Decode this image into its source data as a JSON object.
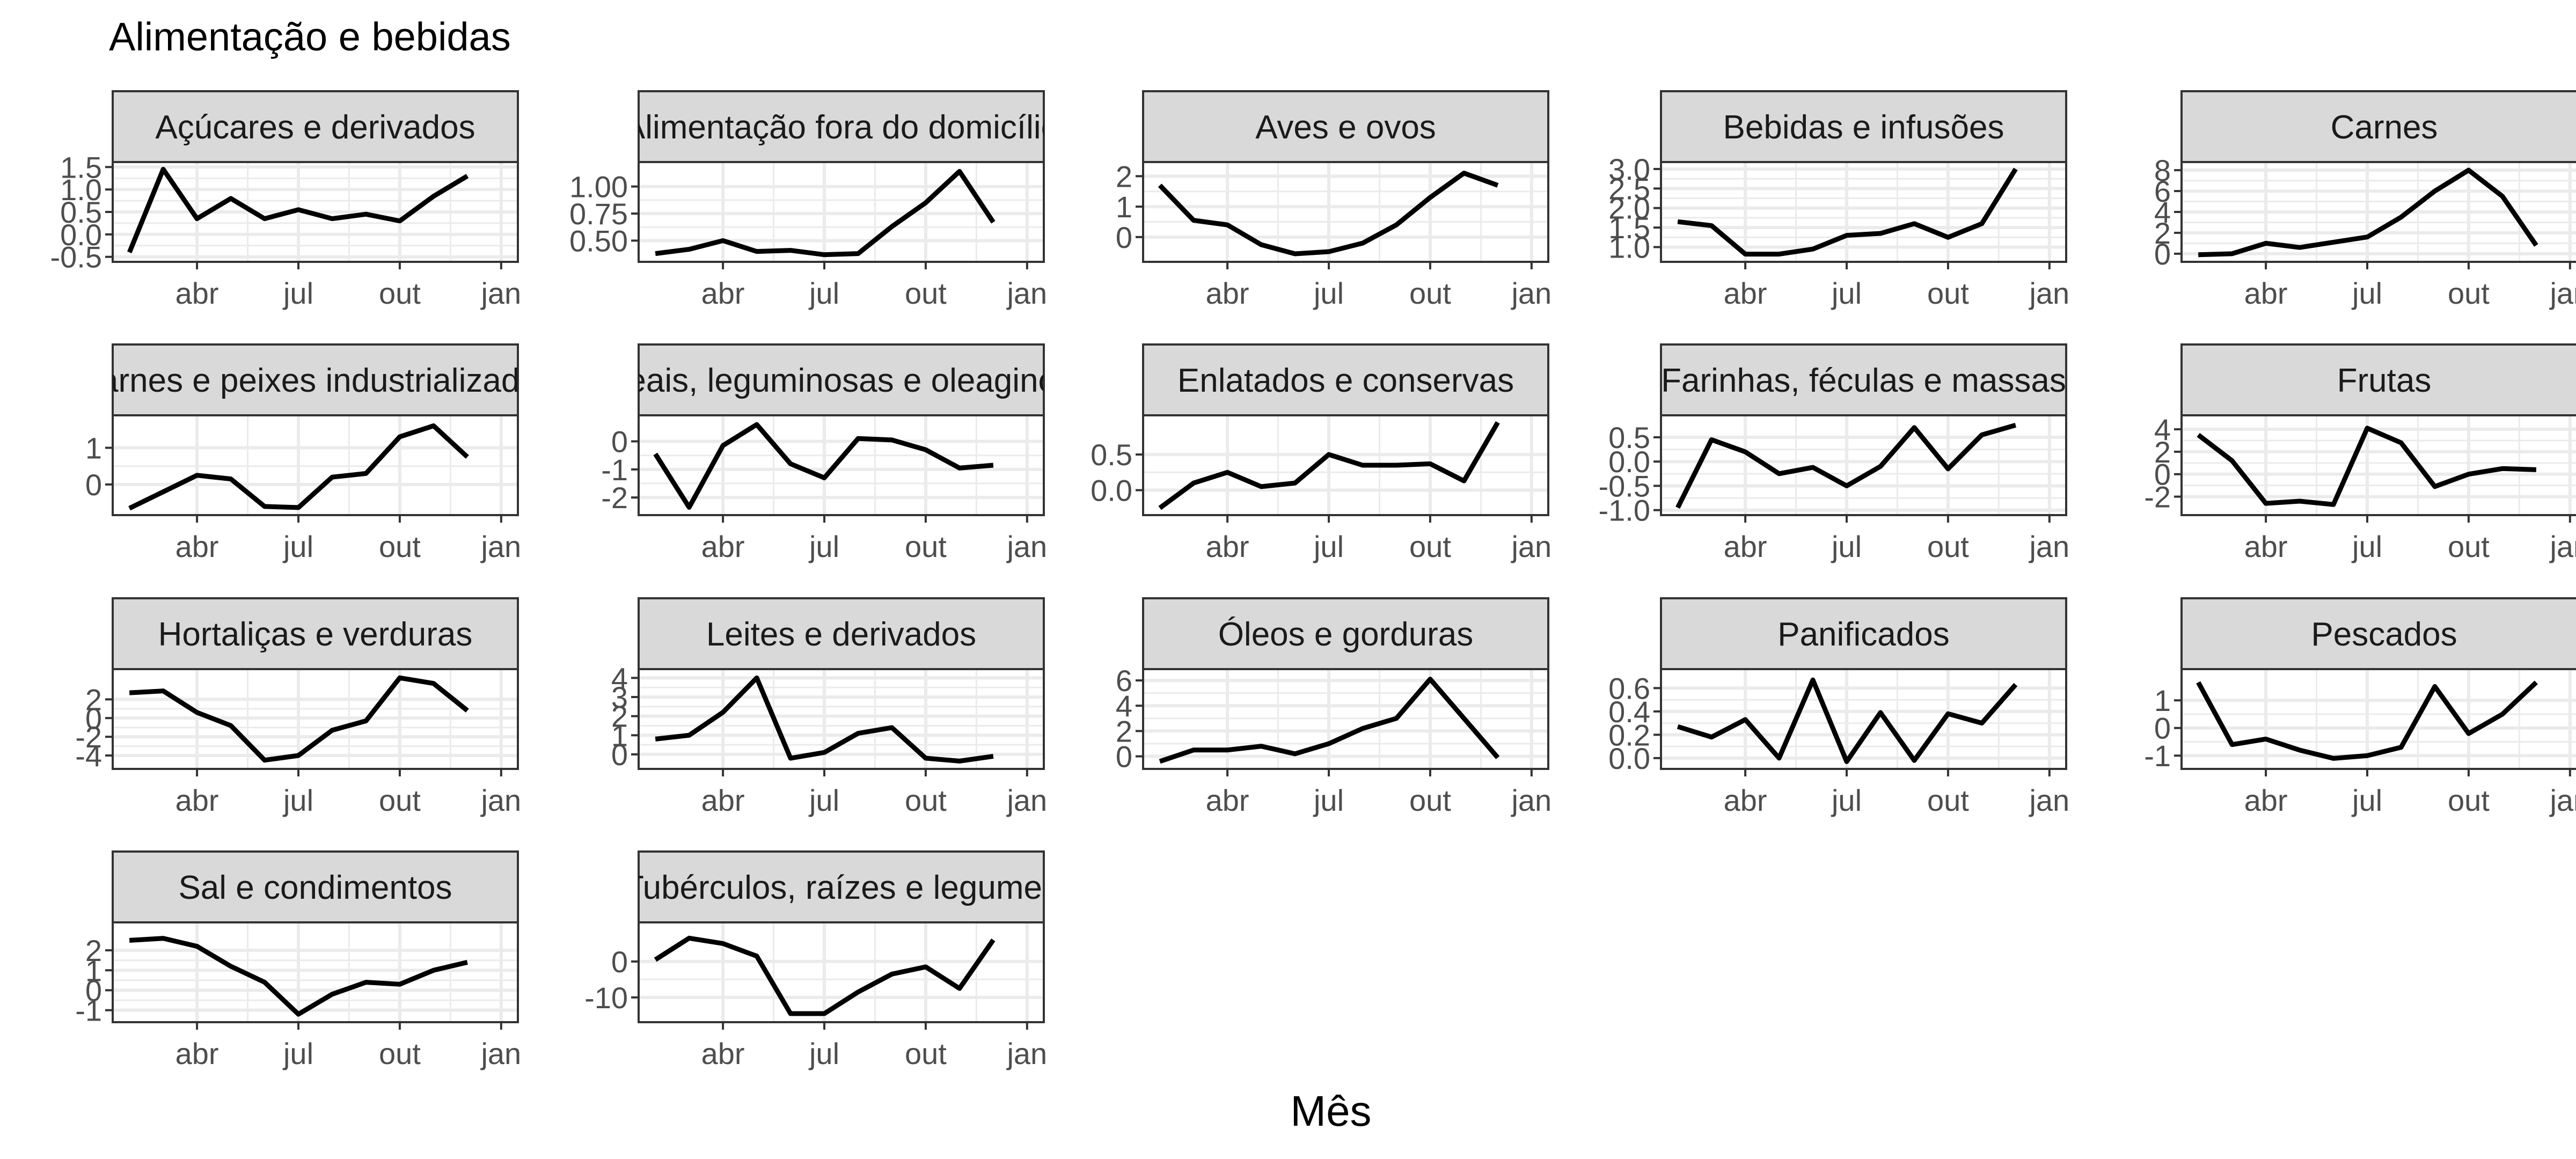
{
  "title": "Alimentação e bebidas",
  "xlabel": "Mês",
  "colors": {
    "line": "#000000",
    "strip_fill": "#d9d9d9",
    "strip_border": "#333333",
    "grid": "#ebebeb",
    "panel_border": "#333333",
    "tick_label": "#4d4d4d"
  },
  "chart_data": {
    "type": "line",
    "layout": "facet-wrap 5 columns, free y scales",
    "grid": true,
    "x_tick_labels": [
      "abr",
      "jul",
      "out",
      "jan"
    ],
    "x_tick_positions": [
      2,
      5,
      8,
      11
    ],
    "x_range": [
      0,
      11
    ],
    "panels": [
      {
        "name": "Açúcares e derivados",
        "ylim": [
          -0.5,
          1.5
        ],
        "yticks": [
          -0.5,
          0.0,
          0.5,
          1.0,
          1.5
        ],
        "ytick_labels": [
          "-0.5",
          "0.0",
          "0.5",
          "1.0",
          "1.5"
        ],
        "values": [
          -0.4,
          1.45,
          0.35,
          0.8,
          0.35,
          0.55,
          0.35,
          0.45,
          0.3,
          0.85,
          1.3
        ]
      },
      {
        "name": "Alimentação fora do domicílio",
        "ylim": [
          0.35,
          1.18
        ],
        "yticks": [
          0.5,
          0.75,
          1.0
        ],
        "ytick_labels": [
          "0.50",
          "0.75",
          "1.00"
        ],
        "values": [
          0.38,
          0.42,
          0.5,
          0.4,
          0.41,
          0.37,
          0.38,
          0.63,
          0.85,
          1.14,
          0.67
        ]
      },
      {
        "name": "Aves e ovos",
        "ylim": [
          -0.65,
          2.3
        ],
        "yticks": [
          0,
          1,
          2
        ],
        "ytick_labels": [
          "0",
          "1",
          "2"
        ],
        "values": [
          1.7,
          0.55,
          0.4,
          -0.25,
          -0.55,
          -0.48,
          -0.2,
          0.4,
          1.3,
          2.1,
          1.7
        ]
      },
      {
        "name": "Bebidas e infusões",
        "ylim": [
          0.75,
          3.05
        ],
        "yticks": [
          1.0,
          1.5,
          2.0,
          2.5,
          3.0
        ],
        "ytick_labels": [
          "1.0",
          "1.5",
          "2.0",
          "2.5",
          "3.0"
        ],
        "values": [
          1.65,
          1.55,
          0.82,
          0.82,
          0.95,
          1.3,
          1.35,
          1.6,
          1.25,
          1.6,
          3.0
        ]
      },
      {
        "name": "Carnes",
        "ylim": [
          -0.3,
          8.3
        ],
        "yticks": [
          0,
          2,
          4,
          6,
          8
        ],
        "ytick_labels": [
          "0",
          "2",
          "4",
          "6",
          "8"
        ],
        "values": [
          -0.1,
          0.0,
          1.0,
          0.6,
          1.1,
          1.6,
          3.5,
          6.0,
          8.0,
          5.5,
          0.8
        ]
      },
      {
        "name": "Carnes e peixes industrializados",
        "ylim": [
          -0.7,
          1.75
        ],
        "yticks": [
          0,
          1
        ],
        "ytick_labels": [
          "0",
          "1"
        ],
        "values": [
          -0.65,
          -0.2,
          0.25,
          0.15,
          -0.6,
          -0.63,
          0.2,
          0.3,
          1.3,
          1.6,
          0.75
        ]
      },
      {
        "name": "Cereais, leguminosas e oleaginosas",
        "ylim": [
          -2.45,
          0.75
        ],
        "yticks": [
          -2,
          -1,
          0
        ],
        "ytick_labels": [
          "-2",
          "-1",
          "0"
        ],
        "values": [
          -0.45,
          -2.35,
          -0.15,
          0.6,
          -0.8,
          -1.3,
          0.1,
          0.05,
          -0.3,
          -0.95,
          -0.85
        ]
      },
      {
        "name": "Enlatados e conservas",
        "ylim": [
          -0.28,
          0.98
        ],
        "yticks": [
          0.0,
          0.5
        ],
        "ytick_labels": [
          "0.0",
          "0.5"
        ],
        "values": [
          -0.25,
          0.1,
          0.25,
          0.05,
          0.1,
          0.5,
          0.35,
          0.35,
          0.37,
          0.13,
          0.95
        ]
      },
      {
        "name": "Farinhas, féculas e massas",
        "ylim": [
          -1.0,
          0.85
        ],
        "yticks": [
          -1.0,
          -0.5,
          0.0,
          0.5
        ],
        "ytick_labels": [
          "-1.0",
          "-0.5",
          "0.0",
          "0.5"
        ],
        "values": [
          -0.95,
          0.45,
          0.2,
          -0.25,
          -0.12,
          -0.5,
          -0.1,
          0.7,
          -0.15,
          0.55,
          0.75
        ]
      },
      {
        "name": "Frutas",
        "ylim": [
          -3.2,
          4.8
        ],
        "yticks": [
          -2,
          0,
          2,
          4
        ],
        "ytick_labels": [
          "-2",
          "0",
          "2",
          "4"
        ],
        "values": [
          3.5,
          1.2,
          -2.6,
          -2.4,
          -2.7,
          4.1,
          2.8,
          -1.1,
          0.0,
          0.5,
          0.4
        ]
      },
      {
        "name": "Hortaliças e verduras",
        "ylim": [
          -4.9,
          4.7
        ],
        "yticks": [
          -4,
          -2,
          0,
          2
        ],
        "ytick_labels": [
          "-4",
          "-2",
          "0",
          "2"
        ],
        "values": [
          2.7,
          2.9,
          0.6,
          -0.8,
          -4.5,
          -4.0,
          -1.3,
          -0.3,
          4.3,
          3.7,
          0.8
        ]
      },
      {
        "name": "Leites e derivados",
        "ylim": [
          -0.5,
          4.2
        ],
        "yticks": [
          0,
          1,
          2,
          3,
          4
        ],
        "ytick_labels": [
          "0",
          "1",
          "2",
          "3",
          "4"
        ],
        "values": [
          0.8,
          1.0,
          2.2,
          4.0,
          -0.2,
          0.1,
          1.1,
          1.4,
          -0.2,
          -0.35,
          -0.1
        ]
      },
      {
        "name": "Óleos e gorduras",
        "ylim": [
          -0.6,
          6.5
        ],
        "yticks": [
          0,
          2,
          4,
          6
        ],
        "ytick_labels": [
          "0",
          "2",
          "4",
          "6"
        ],
        "values": [
          -0.4,
          0.5,
          0.5,
          0.8,
          0.2,
          1.0,
          2.2,
          3.0,
          6.1,
          3.0,
          -0.1
        ]
      },
      {
        "name": "Panificados",
        "ylim": [
          -0.05,
          0.72
        ],
        "yticks": [
          0.0,
          0.2,
          0.4,
          0.6
        ],
        "ytick_labels": [
          "0.0",
          "0.2",
          "0.4",
          "0.6"
        ],
        "values": [
          0.27,
          0.18,
          0.33,
          0.0,
          0.67,
          -0.03,
          0.39,
          -0.02,
          0.38,
          0.3,
          0.63
        ]
      },
      {
        "name": "Pescados",
        "ylim": [
          -1.3,
          1.95
        ],
        "yticks": [
          -1,
          0,
          1
        ],
        "ytick_labels": [
          "-1",
          "0",
          "1"
        ],
        "values": [
          1.65,
          -0.6,
          -0.4,
          -0.8,
          -1.1,
          -1.0,
          -0.7,
          1.5,
          -0.2,
          0.5,
          1.65
        ]
      },
      {
        "name": "Sal e condimentos",
        "ylim": [
          -1.35,
          3.15
        ],
        "yticks": [
          -1,
          0,
          1,
          2
        ],
        "ytick_labels": [
          "-1",
          "0",
          "1",
          "2"
        ],
        "values": [
          2.5,
          2.6,
          2.2,
          1.2,
          0.4,
          -1.2,
          -0.2,
          0.4,
          0.3,
          1.0,
          1.4
        ]
      },
      {
        "name": "Tubérculos, raízes e legumes",
        "ylim": [
          -15.5,
          9.5
        ],
        "yticks": [
          -10,
          0
        ],
        "ytick_labels": [
          "-10",
          "0"
        ],
        "values": [
          0.5,
          6.5,
          5.0,
          1.5,
          -14.5,
          -14.5,
          -8.5,
          -3.5,
          -1.5,
          -7.5,
          6.0
        ]
      }
    ]
  }
}
